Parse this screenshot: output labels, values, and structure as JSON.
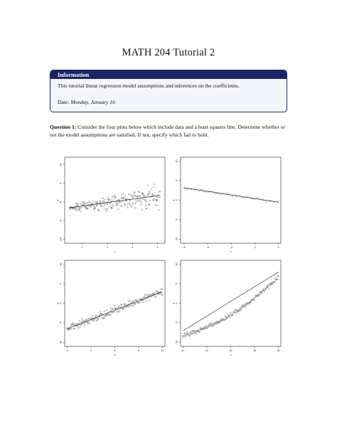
{
  "header": {
    "title": "MATH 204 Tutorial 2"
  },
  "info": {
    "heading": "Information",
    "text": "This tutorial linear regression model assumptions and inferences on the coefficients.",
    "date_prefix": "Date:",
    "date_value": "Monday, January 16"
  },
  "question": {
    "label": "Question 1:",
    "text": "Consider the four plots below which include data and a least squares line. Determine whether or not the model assumptions are satisfied. If not, specify which fail to hold."
  },
  "chart_data": [
    {
      "type": "scatter",
      "xlabel": "x",
      "ylabel": "y",
      "x_ticks": [
        2,
        3,
        4,
        5
      ],
      "y_ticks": [
        -10,
        -5,
        0,
        5,
        10
      ],
      "xlim": [
        1.3,
        5.3
      ],
      "ylim": [
        -11,
        12
      ],
      "trend": {
        "x": [
          1.5,
          5.1
        ],
        "y": [
          -1.5,
          1.8
        ]
      },
      "points_note_values": "fan-shaped spread around line"
    },
    {
      "type": "scatter",
      "xlabel": "x",
      "ylabel": "y",
      "x_ticks": [
        -8,
        -6,
        -4,
        -2,
        0
      ],
      "y_ticks": [
        -10,
        -5,
        0,
        5,
        10
      ],
      "xlim": [
        -8.3,
        0.2
      ],
      "ylim": [
        -11,
        11
      ],
      "trend": {
        "x": [
          -8,
          0
        ],
        "y": [
          3.2,
          -0.5
        ]
      }
    },
    {
      "type": "scatter",
      "xlabel": "x",
      "ylabel": "y",
      "x_ticks": [
        2,
        4,
        6,
        8,
        10
      ],
      "y_ticks": [
        -10,
        -5,
        0,
        5,
        10
      ],
      "xlim": [
        1.8,
        10.2
      ],
      "ylim": [
        -11,
        11
      ],
      "trend": {
        "x": [
          2,
          10
        ],
        "y": [
          -6.5,
          3
        ]
      }
    },
    {
      "type": "scatter",
      "xlabel": "x",
      "ylabel": "y",
      "x_ticks": [
        12,
        14,
        16,
        18,
        20
      ],
      "y_ticks": [
        -10,
        -5,
        0,
        5,
        10
      ],
      "xlim": [
        11.8,
        20.2
      ],
      "ylim": [
        -11,
        11
      ],
      "trend": {
        "x": [
          12,
          20
        ],
        "y": [
          -7,
          8
        ]
      }
    }
  ]
}
